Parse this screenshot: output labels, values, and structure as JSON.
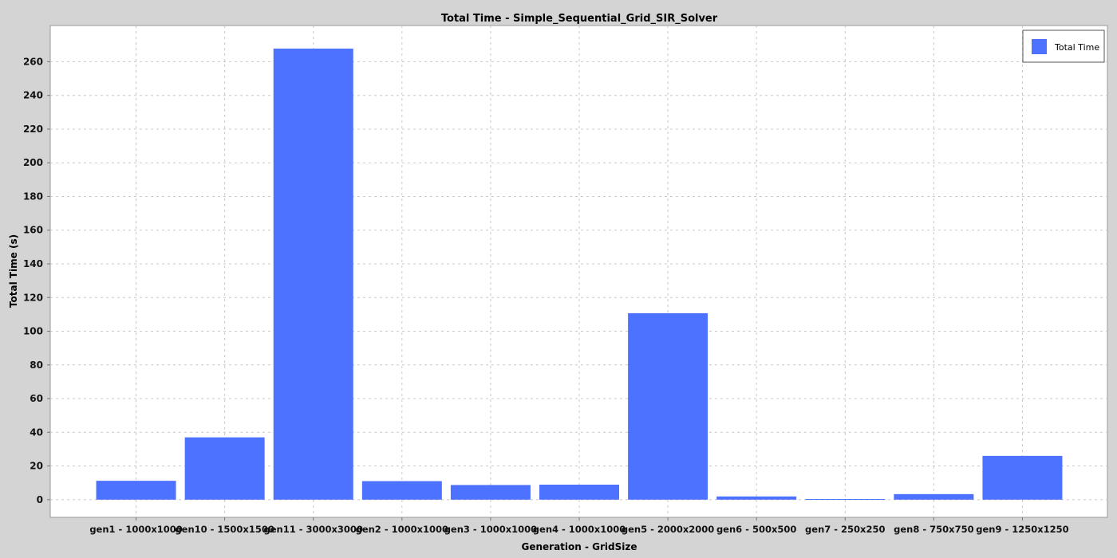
{
  "chart_data": {
    "type": "bar",
    "title": "Total Time - Simple_Sequential_Grid_SIR_Solver",
    "xlabel": "Generation - GridSize",
    "ylabel": "Total Time (s)",
    "categories": [
      "gen1 - 1000x1000",
      "gen10 - 1500x1500",
      "gen11 - 3000x3000",
      "gen2 - 1000x1000",
      "gen3 - 1000x1000",
      "gen4 - 1000x1000",
      "gen5 - 2000x2000",
      "gen6 - 500x500",
      "gen7 - 250x250",
      "gen8 - 750x750",
      "gen9 - 1250x1250"
    ],
    "series": [
      {
        "name": "Total Time",
        "color": "#4d72ff",
        "values": [
          11.2,
          37.0,
          267.8,
          11.0,
          8.7,
          8.9,
          110.7,
          1.9,
          0.4,
          3.3,
          26.0
        ]
      }
    ],
    "yticks": [
      0,
      20,
      40,
      60,
      80,
      100,
      120,
      140,
      160,
      180,
      200,
      220,
      240,
      260
    ],
    "ylim": [
      -10.5,
      281.5
    ],
    "grid": true,
    "legend": "top-right"
  }
}
